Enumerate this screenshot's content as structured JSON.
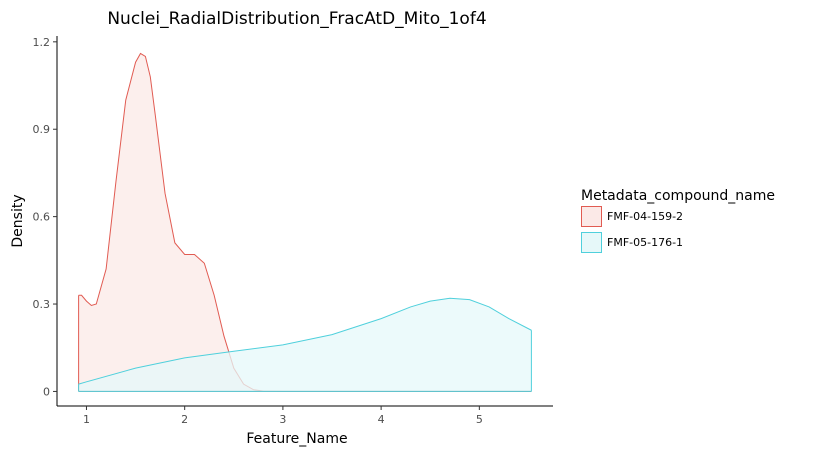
{
  "chart_data": {
    "type": "area",
    "title": "Nuclei_RadialDistribution_FracAtD_Mito_1of4",
    "xlabel": "Feature_Name",
    "ylabel": "Density",
    "xlim": [
      0.7,
      5.75
    ],
    "ylim": [
      -0.05,
      1.22
    ],
    "x_ticks": [
      1,
      2,
      3,
      4,
      5
    ],
    "y_ticks": [
      0,
      0.3,
      0.6,
      0.9,
      1.2
    ],
    "y_tick_labels": [
      "0",
      "0.3",
      "0.6",
      "0.9",
      "1.2"
    ],
    "grid": false,
    "legend": {
      "title": "Metadata_compound_name",
      "position": "right"
    },
    "series": [
      {
        "name": "FMF-04-159-2",
        "color": "#e15b52",
        "fill": "#fbe9e7",
        "x": [
          0.92,
          0.95,
          1.0,
          1.05,
          1.1,
          1.2,
          1.3,
          1.4,
          1.5,
          1.55,
          1.6,
          1.65,
          1.7,
          1.8,
          1.9,
          2.0,
          2.1,
          2.2,
          2.3,
          2.4,
          2.5,
          2.6,
          2.7,
          2.8,
          3.0,
          4.0,
          5.53
        ],
        "y": [
          0.33,
          0.33,
          0.31,
          0.295,
          0.3,
          0.42,
          0.72,
          1.0,
          1.13,
          1.16,
          1.15,
          1.08,
          0.95,
          0.68,
          0.51,
          0.47,
          0.47,
          0.44,
          0.33,
          0.19,
          0.08,
          0.025,
          0.006,
          0.001,
          0,
          0,
          0
        ]
      },
      {
        "name": "FMF-05-176-1",
        "color": "#4fd0dc",
        "fill": "#e6f8f9",
        "x": [
          0.92,
          1.0,
          1.5,
          2.0,
          2.5,
          3.0,
          3.5,
          4.0,
          4.3,
          4.5,
          4.7,
          4.9,
          5.1,
          5.3,
          5.53
        ],
        "y": [
          0.025,
          0.033,
          0.08,
          0.115,
          0.138,
          0.16,
          0.195,
          0.25,
          0.29,
          0.31,
          0.32,
          0.315,
          0.29,
          0.25,
          0.21
        ]
      }
    ]
  }
}
